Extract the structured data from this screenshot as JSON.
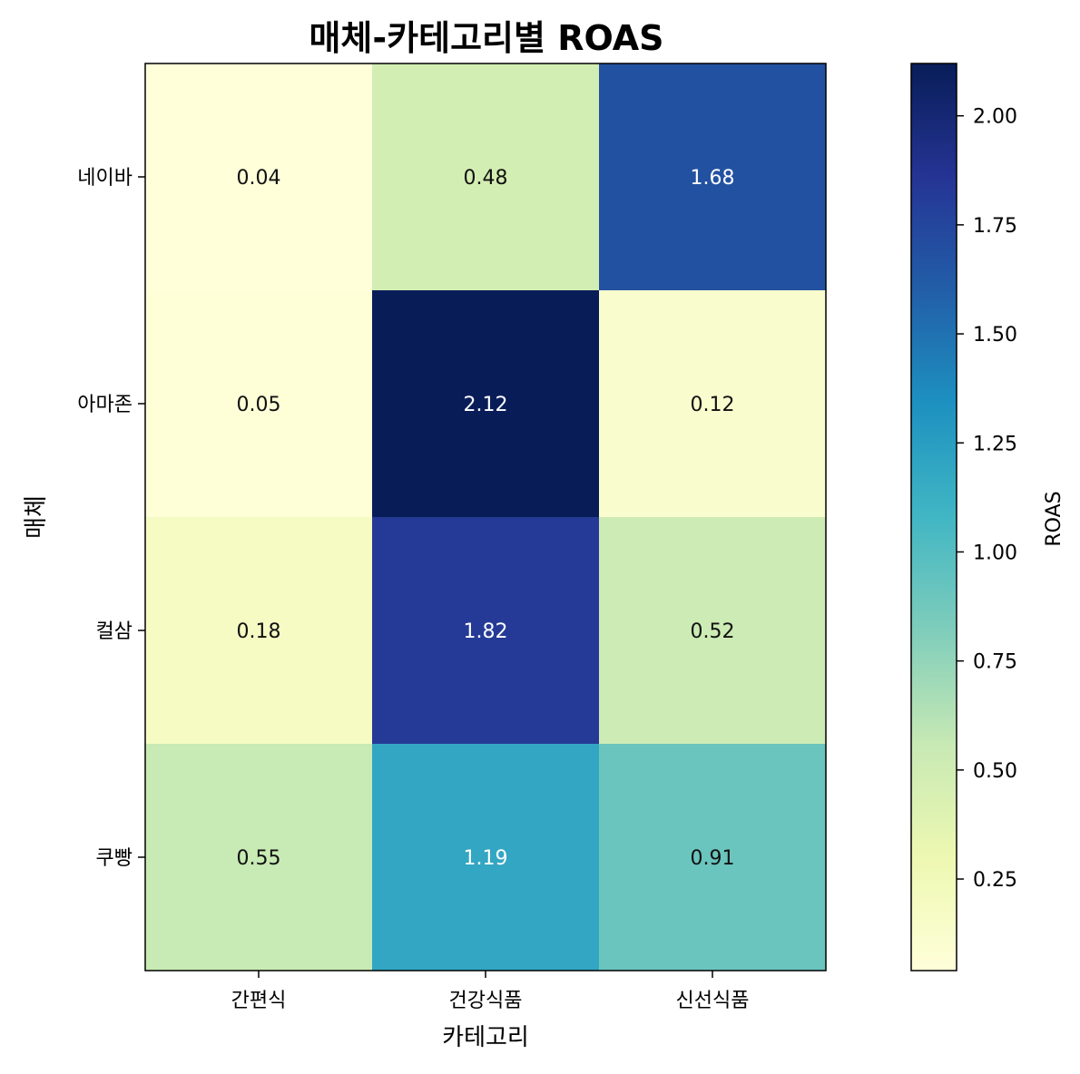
{
  "chart_data": {
    "type": "heatmap",
    "title": "매체-카테고리별 ROAS",
    "xlabel": "카테고리",
    "ylabel": "매체",
    "x_categories": [
      "간편식",
      "건강식품",
      "신선식품"
    ],
    "y_categories": [
      "네이바",
      "아마존",
      "컬삼",
      "쿠빵"
    ],
    "values": [
      [
        0.04,
        0.48,
        1.68
      ],
      [
        0.05,
        2.12,
        0.12
      ],
      [
        0.18,
        1.82,
        0.52
      ],
      [
        0.55,
        1.19,
        0.91
      ]
    ],
    "value_labels": [
      [
        "0.04",
        "0.48",
        "1.68"
      ],
      [
        "0.05",
        "2.12",
        "0.12"
      ],
      [
        "0.18",
        "1.82",
        "0.52"
      ],
      [
        "0.55",
        "1.19",
        "0.91"
      ]
    ],
    "colorbar": {
      "label": "ROAS",
      "range": [
        0.04,
        2.12
      ],
      "ticks": [
        0.25,
        0.5,
        0.75,
        1.0,
        1.25,
        1.5,
        1.75,
        2.0
      ],
      "tick_labels": [
        "0.25",
        "0.50",
        "0.75",
        "1.00",
        "1.25",
        "1.50",
        "1.75",
        "2.00"
      ],
      "colormap": "YlGnBu"
    },
    "grid": false
  }
}
